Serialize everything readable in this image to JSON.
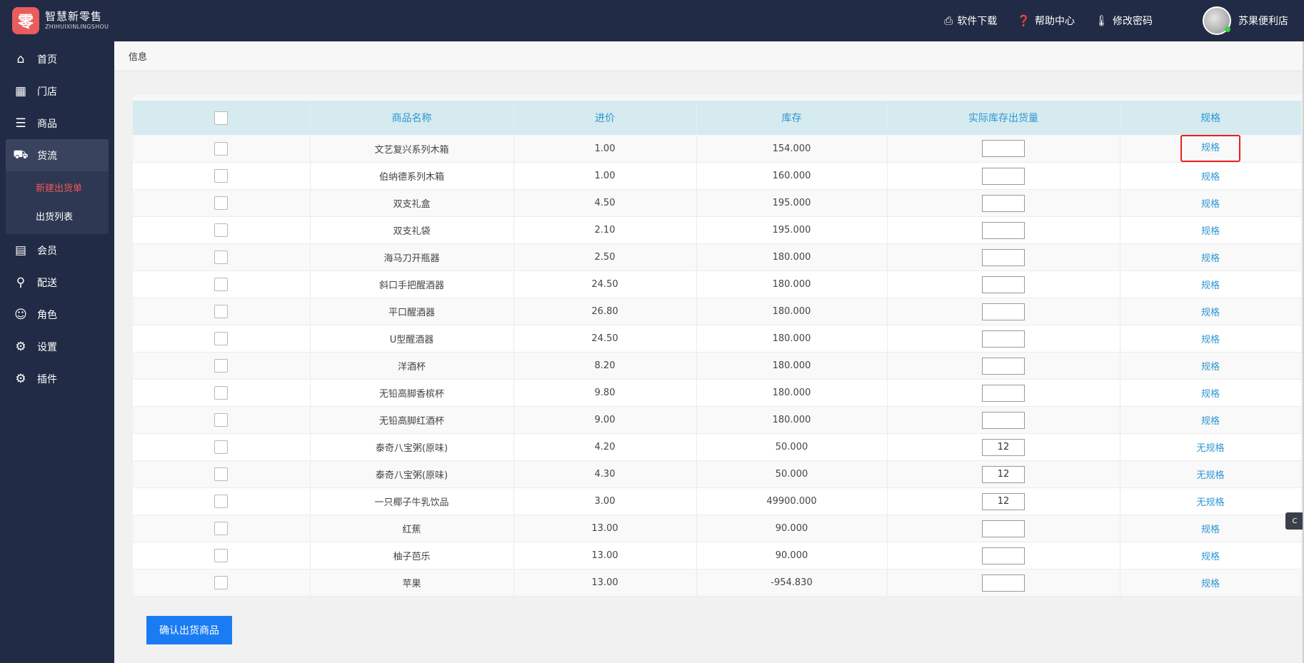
{
  "brand": {
    "cn": "智慧新零售",
    "en": "ZHIHUIXINLINGSHOU",
    "mark": "零"
  },
  "topnav": [
    {
      "icon": "printer-icon",
      "glyph": "⎙",
      "label": "软件下载"
    },
    {
      "icon": "help-icon",
      "glyph": "❓",
      "label": "帮助中心"
    },
    {
      "icon": "thermometer-icon",
      "glyph": "🌡",
      "label": "修改密码"
    }
  ],
  "user": {
    "name": "苏果便利店"
  },
  "sidebar": {
    "items": [
      {
        "label": "首页",
        "icon": "home-icon",
        "glyph": "⌂"
      },
      {
        "label": "门店",
        "icon": "building-icon",
        "glyph": "▦"
      },
      {
        "label": "商品",
        "icon": "list-icon",
        "glyph": "☰"
      },
      {
        "label": "货流",
        "icon": "truck-icon",
        "glyph": "⛟"
      },
      {
        "label": "会员",
        "icon": "id-card-icon",
        "glyph": "▤"
      },
      {
        "label": "配送",
        "icon": "motorcycle-icon",
        "glyph": "⚲"
      },
      {
        "label": "角色",
        "icon": "user-circle-icon",
        "glyph": "☺"
      },
      {
        "label": "设置",
        "icon": "gear-icon",
        "glyph": "⚙"
      },
      {
        "label": "插件",
        "icon": "gears-icon",
        "glyph": "⚙"
      }
    ],
    "submenu": [
      {
        "label": "新建出货单"
      },
      {
        "label": "出货列表"
      }
    ]
  },
  "breadcrumb": "信息",
  "table": {
    "headers": [
      "商品名称",
      "进价",
      "库存",
      "实际库存出货量",
      "规格"
    ],
    "rows": [
      {
        "name": "文艺复兴系列木箱",
        "price": "1.00",
        "stock": "154.000",
        "qty": "",
        "spec": "规格"
      },
      {
        "name": "伯纳德系列木箱",
        "price": "1.00",
        "stock": "160.000",
        "qty": "",
        "spec": "规格"
      },
      {
        "name": "双支礼盒",
        "price": "4.50",
        "stock": "195.000",
        "qty": "",
        "spec": "规格"
      },
      {
        "name": "双支礼袋",
        "price": "2.10",
        "stock": "195.000",
        "qty": "",
        "spec": "规格"
      },
      {
        "name": "海马刀开瓶器",
        "price": "2.50",
        "stock": "180.000",
        "qty": "",
        "spec": "规格"
      },
      {
        "name": "斜口手把醒酒器",
        "price": "24.50",
        "stock": "180.000",
        "qty": "",
        "spec": "规格"
      },
      {
        "name": "平口醒酒器",
        "price": "26.80",
        "stock": "180.000",
        "qty": "",
        "spec": "规格"
      },
      {
        "name": "U型醒酒器",
        "price": "24.50",
        "stock": "180.000",
        "qty": "",
        "spec": "规格"
      },
      {
        "name": "洋酒杯",
        "price": "8.20",
        "stock": "180.000",
        "qty": "",
        "spec": "规格"
      },
      {
        "name": "无铅高脚香槟杯",
        "price": "9.80",
        "stock": "180.000",
        "qty": "",
        "spec": "规格"
      },
      {
        "name": "无铅高脚红酒杯",
        "price": "9.00",
        "stock": "180.000",
        "qty": "",
        "spec": "规格"
      },
      {
        "name": "泰奇八宝粥(原味)",
        "price": "4.20",
        "stock": "50.000",
        "qty": "12",
        "spec": "无规格"
      },
      {
        "name": "泰奇八宝粥(原味)",
        "price": "4.30",
        "stock": "50.000",
        "qty": "12",
        "spec": "无规格"
      },
      {
        "name": "一只椰子牛乳饮品",
        "price": "3.00",
        "stock": "49900.000",
        "qty": "12",
        "spec": "无规格"
      },
      {
        "name": "红蕉",
        "price": "13.00",
        "stock": "90.000",
        "qty": "",
        "spec": "规格"
      },
      {
        "name": "柚子芭乐",
        "price": "13.00",
        "stock": "90.000",
        "qty": "",
        "spec": "规格"
      },
      {
        "name": "苹果",
        "price": "13.00",
        "stock": "-954.830",
        "qty": "",
        "spec": "规格"
      }
    ]
  },
  "submit_label": "确认出货商品",
  "side_tab_label": "C"
}
